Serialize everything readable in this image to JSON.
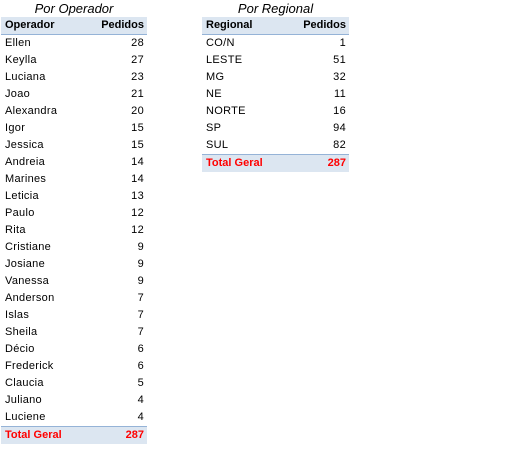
{
  "operator_table": {
    "caption": "Por Operador",
    "headers": {
      "name": "Operador",
      "orders": "Pedidos"
    },
    "rows": [
      {
        "name": "Ellen",
        "orders": "28"
      },
      {
        "name": "Keylla",
        "orders": "27"
      },
      {
        "name": "Luciana",
        "orders": "23"
      },
      {
        "name": "Joao",
        "orders": "21"
      },
      {
        "name": "Alexandra",
        "orders": "20"
      },
      {
        "name": "Igor",
        "orders": "15"
      },
      {
        "name": "Jessica",
        "orders": "15"
      },
      {
        "name": "Andreia",
        "orders": "14"
      },
      {
        "name": "Marines",
        "orders": "14"
      },
      {
        "name": "Leticia",
        "orders": "13"
      },
      {
        "name": "Paulo",
        "orders": "12"
      },
      {
        "name": "Rita",
        "orders": "12"
      },
      {
        "name": "Cristiane",
        "orders": "9"
      },
      {
        "name": "Josiane",
        "orders": "9"
      },
      {
        "name": "Vanessa",
        "orders": "9"
      },
      {
        "name": "Anderson",
        "orders": "7"
      },
      {
        "name": "Islas",
        "orders": "7"
      },
      {
        "name": "Sheila",
        "orders": "7"
      },
      {
        "name": "Décio",
        "orders": "6"
      },
      {
        "name": "Frederick",
        "orders": "6"
      },
      {
        "name": "Claucia",
        "orders": "5"
      },
      {
        "name": "Juliano",
        "orders": "4"
      },
      {
        "name": "Luciene",
        "orders": "4"
      }
    ],
    "total": {
      "label": "Total Geral",
      "orders": "287"
    }
  },
  "region_table": {
    "caption": "Por Regional",
    "headers": {
      "name": "Regional",
      "orders": "Pedidos"
    },
    "rows": [
      {
        "name": "CO/N",
        "orders": "1"
      },
      {
        "name": "LESTE",
        "orders": "51"
      },
      {
        "name": "MG",
        "orders": "32"
      },
      {
        "name": "NE",
        "orders": "11"
      },
      {
        "name": "NORTE",
        "orders": "16"
      },
      {
        "name": "SP",
        "orders": "94"
      },
      {
        "name": "SUL",
        "orders": "82"
      }
    ],
    "total": {
      "label": "Total Geral",
      "orders": "287"
    }
  },
  "colors": {
    "header_bg": "#dce6f1",
    "border": "#95b3d7",
    "total_text": "#ff0000"
  }
}
